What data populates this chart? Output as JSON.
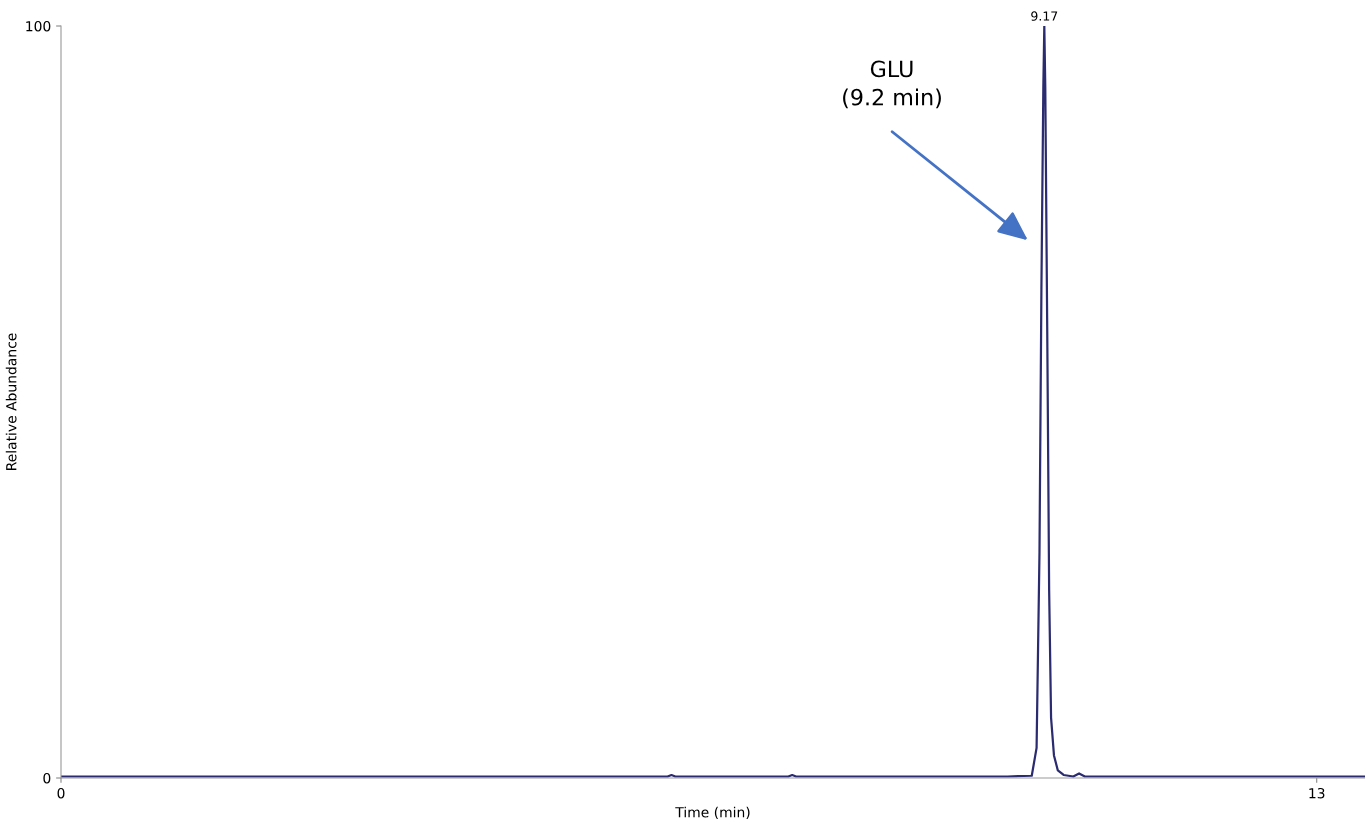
{
  "chart_data": {
    "type": "line",
    "xlabel": "Time (min)",
    "ylabel": "Relative Abundance",
    "x": [
      0,
      1,
      2,
      3,
      4,
      5,
      6,
      6.28,
      6.32,
      6.36,
      7,
      7.53,
      7.57,
      7.61,
      8,
      9,
      9.8,
      10.05,
      10.1,
      10.13,
      10.15,
      10.17,
      10.18,
      10.19,
      10.21,
      10.23,
      10.25,
      10.28,
      10.32,
      10.38,
      10.48,
      10.54,
      10.6,
      10.8,
      11,
      12,
      13,
      13.5
    ],
    "series": [
      {
        "color": "#2b2b70",
        "values": [
          0.2,
          0.2,
          0.2,
          0.2,
          0.2,
          0.2,
          0.2,
          0.2,
          0.4,
          0.2,
          0.2,
          0.2,
          0.4,
          0.2,
          0.2,
          0.2,
          0.2,
          0.3,
          4,
          30,
          65,
          92,
          100,
          92,
          60,
          25,
          8,
          3,
          1,
          0.4,
          0.2,
          0.6,
          0.2,
          0.2,
          0.2,
          0.2,
          0.2,
          0.2
        ]
      }
    ],
    "xlim": [
      0,
      13.5
    ],
    "xticks": [
      0,
      13
    ],
    "ylim": [
      0,
      100
    ],
    "yticks": [
      0,
      100
    ],
    "annotations": [
      {
        "text": "9.17",
        "x": 10.18,
        "y": 100
      },
      "GLU\n(9.2 min)"
    ],
    "grid": false,
    "legend": false
  }
}
